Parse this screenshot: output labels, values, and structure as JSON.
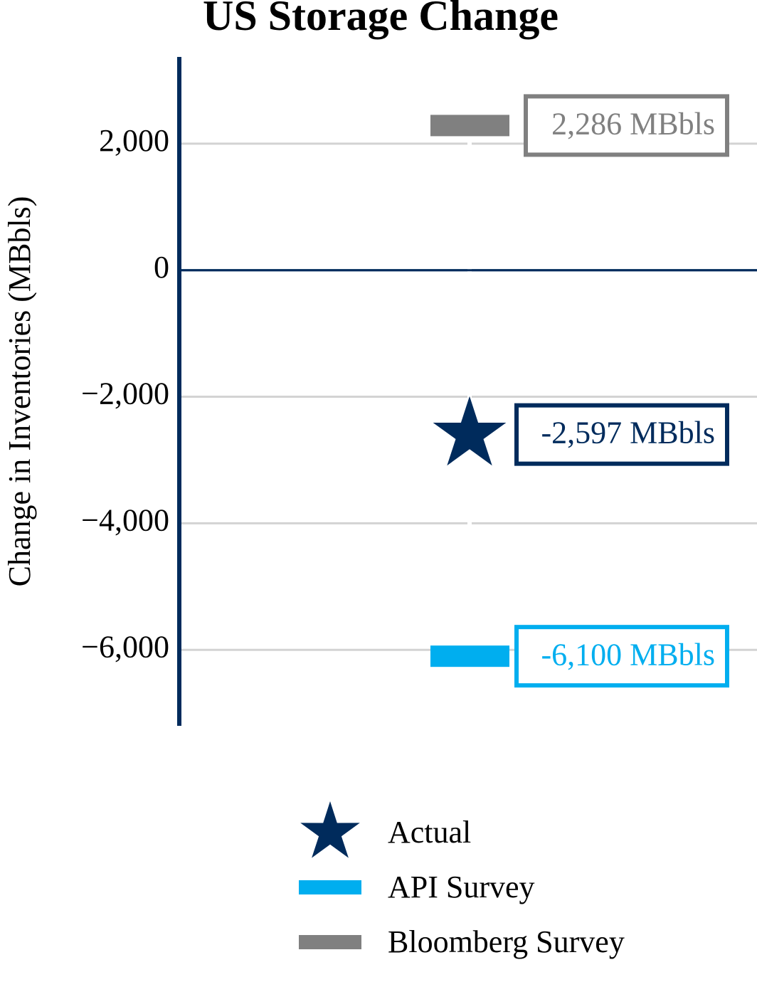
{
  "chart_data": {
    "type": "scatter",
    "title": "US Storage Change",
    "y_label": "Change in Inventories (MBbls)",
    "ylim": [
      -7200,
      3370
    ],
    "yticks": [
      {
        "value": 2000,
        "label": "2,000"
      },
      0,
      {
        "value": -2000,
        "label": "−2,000"
      },
      {
        "value": -4000,
        "label": "−4,000"
      },
      {
        "value": -6000,
        "label": "−6,000"
      }
    ],
    "grid": true,
    "legend": "bottom",
    "series": [
      {
        "name": "Actual",
        "color": "#002b5c",
        "marker": "star",
        "values": [
          -2597
        ],
        "value_labels": [
          "-2,597 MBbls"
        ]
      },
      {
        "name": "API Survey",
        "color": "#00aeef",
        "marker": "bar",
        "values": [
          -6100
        ],
        "value_labels": [
          "-6,100 MBbls"
        ]
      },
      {
        "name": "Bloomberg Survey",
        "color": "#808080",
        "marker": "bar",
        "values": [
          2286
        ],
        "value_labels": [
          "2,286 MBbls"
        ]
      }
    ]
  }
}
